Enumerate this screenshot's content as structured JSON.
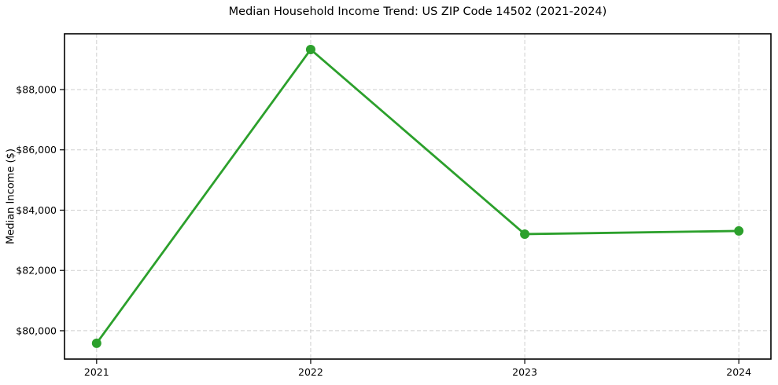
{
  "page": {
    "background": "#ffffff"
  },
  "chart_data": {
    "type": "line",
    "title": "Median Household Income Trend: US ZIP Code 14502 (2021-2024)",
    "xlabel": "",
    "ylabel": "Median Income ($)",
    "x": [
      2021,
      2022,
      2023,
      2024
    ],
    "x_tick_labels": [
      "2021",
      "2022",
      "2023",
      "2024"
    ],
    "series_name": "Median Household Income",
    "values": [
      79585,
      89330,
      83205,
      83310
    ],
    "y_ticks": [
      80000,
      82000,
      84000,
      86000,
      88000
    ],
    "y_tick_labels": [
      "$80,000",
      "$82,000",
      "$84,000",
      "$86,000",
      "$88,000"
    ],
    "xlim": [
      2020.85,
      2024.15
    ],
    "ylim": [
      79060,
      89850
    ],
    "grid": true,
    "grid_style": "dashed",
    "legend_position": "none",
    "line_color": "#2ca02c",
    "marker_color": "#2ca02c",
    "marker_shape": "circle",
    "grid_color": "#cfcfcf",
    "axis_color": "#000000",
    "text_color": "#000000"
  }
}
